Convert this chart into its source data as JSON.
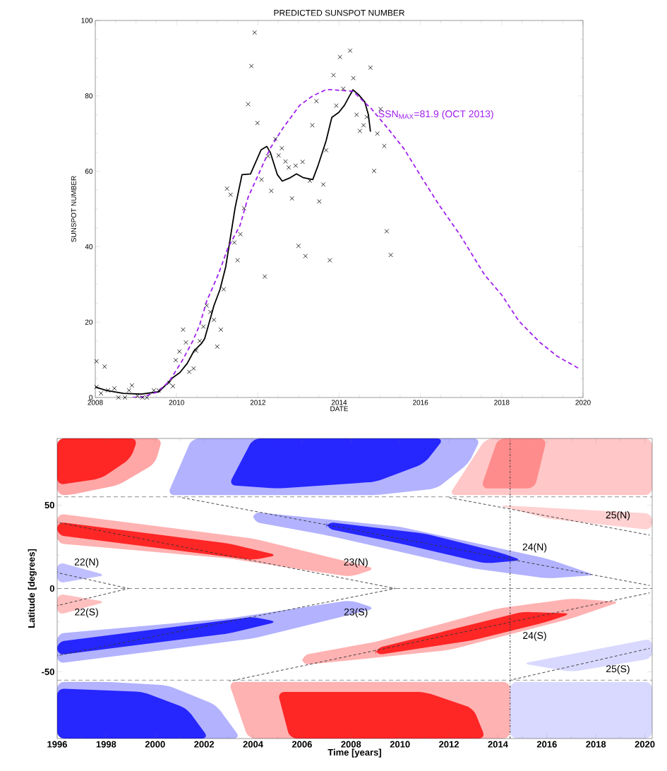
{
  "chart_data": [
    {
      "type": "line",
      "title": "PREDICTED SUNSPOT NUMBER",
      "xlabel": "DATE",
      "ylabel": "SUNSPOT NUMBER",
      "xlim": [
        2008,
        2020
      ],
      "ylim": [
        0,
        100
      ],
      "xticks": [
        2008,
        2010,
        2012,
        2014,
        2016,
        2018,
        2020
      ],
      "yticks": [
        0,
        20,
        40,
        60,
        80,
        100
      ],
      "annotations": [
        "SSN$_{MAX}$=81.9 (OCT 2013)"
      ],
      "series": [
        {
          "type": "scatter",
          "color": "#000000",
          "marker": "cross",
          "x": [
            2008.03,
            2008.23,
            2008.03,
            2008.14,
            2008.31,
            2008.47,
            2008.57,
            2008.73,
            2008.83,
            2008.9,
            2009.04,
            2009.16,
            2009.27,
            2009.44,
            2009.56,
            2009.82,
            2009.91,
            2009.98,
            2010.07,
            2010.16,
            2010.23,
            2010.31,
            2010.42,
            2010.48,
            2010.57,
            2010.66,
            2010.74,
            2010.83,
            2010.92,
            2011.0,
            2011.09,
            2011.16,
            2011.24,
            2011.33,
            2011.42,
            2011.5,
            2011.57,
            2011.66,
            2011.76,
            2011.84,
            2011.92,
            2011.99,
            2012.09,
            2012.17,
            2012.25,
            2012.33,
            2012.43,
            2012.51,
            2012.59,
            2012.68,
            2012.76,
            2012.84,
            2012.93,
            2013.0,
            2013.1,
            2013.17,
            2013.28,
            2013.34,
            2013.44,
            2013.51,
            2013.61,
            2013.68,
            2013.77,
            2013.86,
            2013.93,
            2014.02,
            2014.1,
            2014.27,
            2014.35,
            2014.43,
            2014.51,
            2014.6,
            2014.68,
            2014.77,
            2014.86,
            2014.94,
            2015.02,
            2015.11,
            2015.17,
            2015.27
          ],
          "values": [
            9.6,
            8.2,
            2.8,
            1.1,
            1.9,
            2.4,
            0,
            0,
            1.9,
            3.2,
            0.4,
            0,
            0,
            1.9,
            1.9,
            3.9,
            3.0,
            9.9,
            12.2,
            18.0,
            14.6,
            6.8,
            7.7,
            12.4,
            15.0,
            18.8,
            24.4,
            22.7,
            20.6,
            13.5,
            18.0,
            28.7,
            55.4,
            53.8,
            41.1,
            36.4,
            43.3,
            50.2,
            77.8,
            87.9,
            96.8,
            72.8,
            57.8,
            32.1,
            64.0,
            54.8,
            68.6,
            64.2,
            66.1,
            62.6,
            61.0,
            52.8,
            61.5,
            40.2,
            62.5,
            37.5,
            57.5,
            72.2,
            78.6,
            52.0,
            56.5,
            65.6,
            36.4,
            85.5,
            77.4,
            90.3,
            81.9,
            92.0,
            84.7,
            75.0,
            70.7,
            72.2,
            74.4,
            87.5,
            60.1,
            70.0,
            76.5,
            66.7,
            44.1,
            37.8
          ]
        },
        {
          "type": "line",
          "color": "#000000",
          "line_style": "solid",
          "x": [
            2008,
            2008.26,
            2008.69,
            2009.13,
            2009.56,
            2009.74,
            2009.91,
            2010.08,
            2010.26,
            2010.43,
            2010.61,
            2010.69,
            2010.78,
            2010.92,
            2011.07,
            2011.21,
            2011.44,
            2011.61,
            2011.82,
            2012.08,
            2012.22,
            2012.31,
            2012.48,
            2012.6,
            2012.78,
            2012.95,
            2013.12,
            2013.35,
            2013.47,
            2013.68,
            2013.82,
            2013.99,
            2014.13,
            2014.25,
            2014.34,
            2014.48,
            2014.63,
            2014.72,
            2014.77
          ],
          "values": [
            2.8,
            1.9,
            1.1,
            0.9,
            1.5,
            3.4,
            5.3,
            6.6,
            9.0,
            12.4,
            14.3,
            15.6,
            19,
            24.4,
            28.7,
            34.7,
            50.3,
            59.1,
            59.3,
            65.7,
            66.6,
            64.9,
            59.1,
            57.4,
            58.2,
            59.3,
            58.3,
            57.8,
            61.2,
            68.1,
            74.3,
            75.6,
            77.5,
            79.9,
            81.6,
            80.3,
            78.4,
            75,
            70.5
          ]
        },
        {
          "type": "line",
          "color": "#a020f0",
          "line_style": "dashed",
          "x": [
            2008.92,
            2009.18,
            2009.53,
            2009.82,
            2010.12,
            2010.4,
            2010.57,
            2010.74,
            2011.04,
            2011.26,
            2011.56,
            2011.76,
            2012.02,
            2012.31,
            2012.6,
            2013.03,
            2013.35,
            2013.69,
            2014.0,
            2014.34,
            2014.8,
            2015.21,
            2015.6,
            2016.01,
            2016.45,
            2016.97,
            2017.58,
            2018.0,
            2018.42,
            2018.94,
            2019.37,
            2019.9
          ],
          "values": [
            0,
            0.2,
            1.5,
            4.3,
            9.4,
            15,
            19.3,
            25.5,
            33,
            39.6,
            45.6,
            53.1,
            59.3,
            66.2,
            71.2,
            77.5,
            80,
            81.7,
            81.5,
            81.2,
            76.5,
            71.2,
            65.9,
            58.7,
            51.2,
            43.2,
            32.5,
            27.2,
            20.3,
            14.6,
            10.9,
            7.7
          ]
        }
      ]
    },
    {
      "type": "line",
      "xlabel": "Time [years]",
      "ylabel": "Latitude [degrees]",
      "xlim": [
        1996,
        2020.3
      ],
      "ylim": [
        -90,
        90
      ],
      "xticks": [
        1996,
        1998,
        2000,
        2002,
        2004,
        2006,
        2008,
        2010,
        2012,
        2014,
        2016,
        2018,
        2020
      ],
      "yticks": [
        -50,
        0,
        50
      ],
      "ref_lines": [
        {
          "axis": "y",
          "value": 55,
          "color": "#888888",
          "line_style": "dashed"
        },
        {
          "axis": "y",
          "value": 0,
          "color": "#888888",
          "line_style": "dashed"
        },
        {
          "axis": "y",
          "value": -55,
          "color": "#888888",
          "line_style": "dashed"
        },
        {
          "axis": "x",
          "value": 2014.5,
          "color": "#333333",
          "line_style": "dashdot"
        }
      ],
      "annotations": [
        "22(N)",
        "22(S)",
        "23(N)",
        "23(S)",
        "24(N)",
        "24(S)",
        "25(N)",
        "25(S)"
      ],
      "line_style": "dashed",
      "series": [
        {
          "color": "#333333",
          "x": [
            1996,
            1998.92
          ],
          "values": [
            9.5,
            0
          ]
        },
        {
          "color": "#333333",
          "x": [
            1996,
            1998.92
          ],
          "values": [
            -10.3,
            0
          ]
        },
        {
          "color": "#333333",
          "x": [
            1996,
            2009.82
          ],
          "values": [
            39.7,
            0
          ]
        },
        {
          "color": "#333333",
          "x": [
            1996,
            2009.82
          ],
          "values": [
            -40.3,
            0
          ]
        },
        {
          "color": "#333333",
          "x": [
            2001.06,
            2020.2
          ],
          "values": [
            54.6,
            1.8
          ]
        },
        {
          "color": "#333333",
          "x": [
            2003.04,
            2020.2
          ],
          "values": [
            -55.6,
            -2.6
          ]
        },
        {
          "color": "#333333",
          "x": [
            2011.97,
            2020.2
          ],
          "values": [
            54.6,
            32
          ]
        },
        {
          "color": "#333333",
          "x": [
            2014.5,
            2020.2
          ],
          "values": [
            -55,
            -35.9
          ]
        }
      ]
    }
  ]
}
